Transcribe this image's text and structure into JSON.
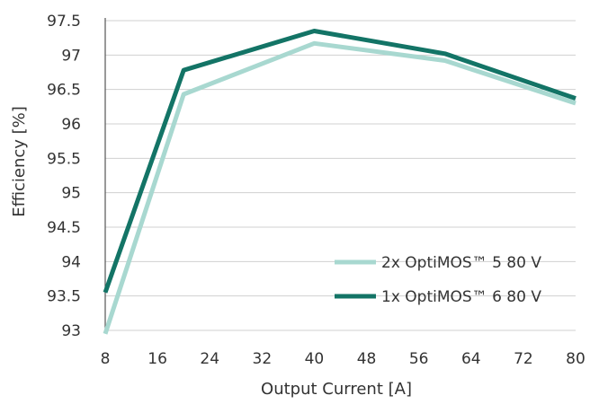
{
  "chart_data": {
    "type": "line",
    "title": "",
    "xlabel": "Output Current [A]",
    "ylabel": "Efficiency [%]",
    "xlim": [
      8,
      80
    ],
    "ylim": [
      93,
      97.5
    ],
    "x_ticks": [
      "8",
      "16",
      "24",
      "32",
      "40",
      "48",
      "56",
      "64",
      "72",
      "80"
    ],
    "y_ticks": [
      "93",
      "93.5",
      "94",
      "94.5",
      "95",
      "95.5",
      "96",
      "96.5",
      "97",
      "97.5"
    ],
    "grid": "horizontal",
    "legend_position": "bottom-right",
    "series": [
      {
        "name": "2x OptiMOS™ 5 80 V",
        "color": "#a8d8d0",
        "x": [
          8,
          20,
          40,
          60,
          80
        ],
        "y": [
          92.95,
          96.43,
          97.17,
          96.92,
          96.3
        ]
      },
      {
        "name": "1x OptiMOS™ 6 80 V",
        "color": "#137466",
        "x": [
          8,
          20,
          40,
          60,
          80
        ],
        "y": [
          93.55,
          96.78,
          97.35,
          97.02,
          96.37
        ]
      }
    ]
  }
}
